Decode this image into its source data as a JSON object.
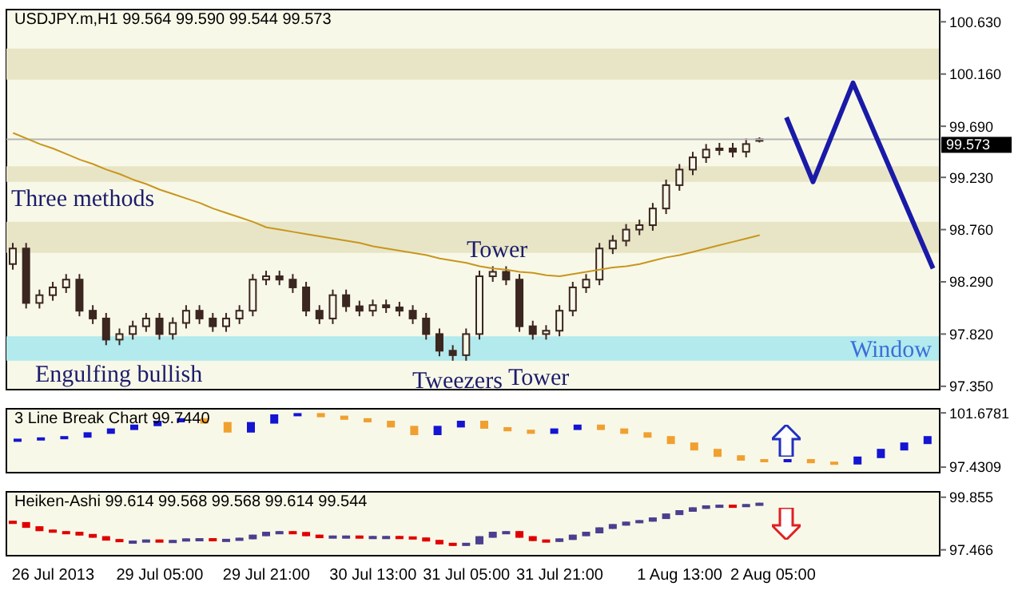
{
  "chart_data": [
    {
      "type": "candlestick",
      "title": "USDJPY.m,H1 99.564 99.590 99.544 99.573",
      "color": "#3b2620",
      "tick_labels": "y",
      "categories": [
        null,
        null,
        null,
        null,
        null,
        null,
        null,
        null,
        null,
        null,
        null,
        null,
        null,
        null,
        null,
        null,
        null,
        null,
        null,
        null,
        null,
        null,
        null,
        null,
        null,
        null,
        null,
        null,
        null,
        null,
        null,
        null,
        null,
        null,
        null,
        null,
        null,
        null,
        null,
        null,
        null,
        null,
        null,
        null,
        null,
        null,
        null,
        null,
        null,
        null,
        null,
        null,
        null,
        null,
        null,
        null,
        null,
        null,
        null,
        null,
        null,
        null,
        null,
        null,
        null,
        null,
        null,
        null,
        null,
        null
      ],
      "ohlc": [
        [
          98.45,
          98.64,
          98.4,
          98.59
        ],
        [
          98.59,
          98.64,
          98.05,
          98.1
        ],
        [
          98.1,
          98.22,
          98.05,
          98.17
        ],
        [
          98.17,
          98.29,
          98.12,
          98.24
        ],
        [
          98.24,
          98.36,
          98.19,
          98.31
        ],
        [
          98.31,
          98.36,
          97.98,
          98.03
        ],
        [
          98.03,
          98.08,
          97.91,
          97.96
        ],
        [
          97.96,
          98.01,
          97.72,
          97.77
        ],
        [
          97.77,
          97.87,
          97.72,
          97.82
        ],
        [
          97.82,
          97.94,
          97.77,
          97.89
        ],
        [
          97.89,
          98.01,
          97.84,
          97.96
        ],
        [
          97.96,
          98.01,
          97.77,
          97.82
        ],
        [
          97.82,
          97.97,
          97.77,
          97.92
        ],
        [
          97.92,
          98.08,
          97.87,
          98.03
        ],
        [
          98.03,
          98.08,
          97.91,
          97.96
        ],
        [
          97.96,
          98.01,
          97.84,
          97.89
        ],
        [
          97.89,
          98.01,
          97.84,
          97.96
        ],
        [
          97.96,
          98.08,
          97.91,
          98.03
        ],
        [
          98.03,
          98.36,
          97.98,
          98.31
        ],
        [
          98.31,
          98.39,
          98.26,
          98.34
        ],
        [
          98.34,
          98.39,
          98.26,
          98.31
        ],
        [
          98.31,
          98.36,
          98.19,
          98.24
        ],
        [
          98.24,
          98.29,
          97.98,
          98.03
        ],
        [
          98.03,
          98.08,
          97.91,
          97.96
        ],
        [
          97.96,
          98.22,
          97.91,
          98.17
        ],
        [
          98.17,
          98.22,
          98.02,
          98.07
        ],
        [
          98.07,
          98.12,
          97.98,
          98.03
        ],
        [
          98.03,
          98.13,
          97.98,
          98.08
        ],
        [
          98.08,
          98.13,
          98.01,
          98.06
        ],
        [
          98.06,
          98.11,
          97.98,
          98.03
        ],
        [
          98.03,
          98.08,
          97.91,
          97.96
        ],
        [
          97.96,
          98.01,
          97.77,
          97.82
        ],
        [
          97.82,
          97.87,
          97.62,
          97.67
        ],
        [
          97.67,
          97.72,
          97.58,
          97.63
        ],
        [
          97.63,
          97.87,
          97.58,
          97.82
        ],
        [
          97.82,
          98.39,
          97.77,
          98.34
        ],
        [
          98.34,
          98.43,
          98.29,
          98.38
        ],
        [
          98.38,
          98.43,
          98.26,
          98.31
        ],
        [
          98.31,
          98.36,
          97.84,
          97.89
        ],
        [
          97.89,
          97.94,
          97.77,
          97.82
        ],
        [
          97.82,
          97.9,
          97.77,
          97.85
        ],
        [
          97.85,
          98.08,
          97.8,
          98.03
        ],
        [
          98.03,
          98.29,
          97.98,
          98.24
        ],
        [
          98.24,
          98.36,
          98.19,
          98.31
        ],
        [
          98.31,
          98.64,
          98.26,
          98.59
        ],
        [
          98.59,
          98.71,
          98.54,
          98.66
        ],
        [
          98.66,
          98.81,
          98.61,
          98.76
        ],
        [
          98.76,
          98.85,
          98.71,
          98.8
        ],
        [
          98.8,
          99.0,
          98.75,
          98.95
        ],
        [
          98.95,
          99.21,
          98.9,
          99.16
        ],
        [
          99.16,
          99.35,
          99.11,
          99.3
        ],
        [
          99.3,
          99.46,
          99.25,
          99.41
        ],
        [
          99.41,
          99.53,
          99.36,
          99.48
        ],
        [
          99.48,
          99.54,
          99.43,
          99.49
        ],
        [
          99.49,
          99.54,
          99.41,
          99.46
        ],
        [
          99.46,
          99.58,
          99.41,
          99.53
        ],
        [
          99.564,
          99.59,
          99.544,
          99.573
        ],
        null,
        null,
        null,
        null,
        null,
        null,
        null,
        null,
        null,
        null,
        null,
        null,
        null
      ],
      "series": [
        {
          "type": "line",
          "color": "#c8961e",
          "values": [
            99.63,
            99.58,
            99.53,
            99.49,
            99.44,
            99.39,
            99.35,
            99.3,
            99.26,
            99.21,
            99.17,
            99.12,
            99.08,
            99.04,
            99.0,
            98.95,
            98.91,
            98.87,
            98.83,
            98.78,
            98.76,
            98.74,
            98.72,
            98.7,
            98.68,
            98.66,
            98.64,
            98.61,
            98.59,
            98.57,
            98.55,
            98.53,
            98.5,
            98.48,
            98.46,
            98.43,
            98.41,
            98.4,
            98.38,
            98.37,
            98.35,
            98.34,
            98.36,
            98.38,
            98.4,
            98.42,
            98.43,
            98.45,
            98.48,
            98.51,
            98.53,
            98.56,
            98.59,
            98.62,
            98.65,
            98.68,
            98.71,
            null,
            null,
            null,
            null,
            null,
            null,
            null,
            null,
            null,
            null,
            null,
            null,
            null
          ]
        },
        {
          "type": "line",
          "color": "#1a1aa8",
          "values": [
            null,
            null,
            null,
            null,
            null,
            null,
            null,
            null,
            null,
            null,
            null,
            null,
            null,
            null,
            null,
            null,
            null,
            null,
            null,
            null,
            null,
            null,
            null,
            null,
            null,
            null,
            null,
            null,
            null,
            null,
            null,
            null,
            null,
            null,
            null,
            null,
            null,
            null,
            null,
            null,
            null,
            null,
            null,
            null,
            null,
            null,
            null,
            null,
            null,
            null,
            null,
            null,
            null,
            null,
            null,
            null,
            null,
            null,
            99.77,
            null,
            99.19,
            null,
            null,
            100.08,
            null,
            null,
            null,
            null,
            null,
            98.41
          ]
        }
      ],
      "ylim": [
        97.32,
        100.74
      ],
      "yticks": [
        {
          "value": 97.35,
          "label": "97.350"
        },
        {
          "value": 97.82,
          "label": "97.820"
        },
        {
          "value": 98.29,
          "label": "98.290"
        },
        {
          "value": 98.76,
          "label": "98.760"
        },
        {
          "value": 99.23,
          "label": "99.230"
        },
        {
          "value": 99.69,
          "label": "99.690"
        },
        {
          "value": 100.16,
          "label": "100.160"
        },
        {
          "value": 100.63,
          "label": "100.630"
        }
      ],
      "bands": [
        {
          "axis": "y",
          "from": 100.11,
          "to": 100.39,
          "color": "#e8e5c6"
        },
        {
          "axis": "y",
          "from": 99.19,
          "to": 99.33,
          "color": "#e8e5c6"
        },
        {
          "axis": "y",
          "from": 98.55,
          "to": 98.83,
          "color": "#e8e5c6"
        },
        {
          "axis": "y",
          "from": 97.58,
          "to": 97.8,
          "label": "Window",
          "color": "#b2eaee"
        }
      ],
      "ref_lines": [
        {
          "axis": "y",
          "value": 99.573,
          "label": "99.573",
          "color": "#b4b4b4"
        }
      ],
      "annotations": [
        "Three methods",
        "Engulfing bullish",
        "Tower",
        "Tweezers",
        "Tower"
      ]
    },
    {
      "type": "candlestick",
      "title": "3 Line Break Chart 99.7440",
      "tick_labels": "y",
      "categories": [
        null,
        null,
        null,
        null,
        null,
        null,
        null,
        null,
        null,
        null,
        null,
        null,
        null,
        null,
        null,
        null,
        null,
        null,
        null,
        null,
        null,
        null,
        null,
        null,
        null,
        null,
        null,
        null,
        null,
        null,
        null,
        null,
        null,
        null,
        null,
        null,
        null,
        null,
        null,
        null
      ],
      "ohlc": [
        [
          99.5,
          99.6,
          99.5,
          99.6
        ],
        [
          99.6,
          99.7,
          99.6,
          99.7
        ],
        [
          99.7,
          99.8,
          99.7,
          99.8
        ],
        [
          99.8,
          100.1,
          99.8,
          100.1
        ],
        [
          100.1,
          100.4,
          100.1,
          100.4
        ],
        [
          100.4,
          100.7,
          100.4,
          100.7
        ],
        [
          100.7,
          101.0,
          100.7,
          101.0
        ],
        [
          101.0,
          101.2,
          101.0,
          101.2
        ],
        [
          101.2,
          101.2,
          100.9,
          100.9
        ],
        [
          100.9,
          100.9,
          100.2,
          100.2
        ],
        [
          100.2,
          100.9,
          100.2,
          100.9
        ],
        [
          100.9,
          101.5,
          100.9,
          101.5
        ],
        [
          101.5,
          101.6,
          101.5,
          101.6
        ],
        [
          101.6,
          101.6,
          101.4,
          101.4
        ],
        [
          101.4,
          101.4,
          101.2,
          101.2
        ],
        [
          101.2,
          101.2,
          101.0,
          101.0
        ],
        [
          101.0,
          101.0,
          100.6,
          100.6
        ],
        [
          100.6,
          100.6,
          100.0,
          100.0
        ],
        [
          100.0,
          100.6,
          100.0,
          100.6
        ],
        [
          100.6,
          101.0,
          100.6,
          101.0
        ],
        [
          101.0,
          101.0,
          100.5,
          100.5
        ],
        [
          100.5,
          100.5,
          100.3,
          100.3
        ],
        [
          100.3,
          100.3,
          100.1,
          100.1
        ],
        [
          100.1,
          100.4,
          100.1,
          100.4
        ],
        [
          100.4,
          100.7,
          100.4,
          100.7
        ],
        [
          100.7,
          100.7,
          100.4,
          100.4
        ],
        [
          100.4,
          100.4,
          100.1,
          100.1
        ],
        [
          100.1,
          100.1,
          99.8,
          99.8
        ],
        [
          99.8,
          99.8,
          99.3,
          99.3
        ],
        [
          99.3,
          99.3,
          98.8,
          98.8
        ],
        [
          98.8,
          98.8,
          98.3,
          98.3
        ],
        [
          98.3,
          98.3,
          98.0,
          98.0
        ],
        [
          98.0,
          98.0,
          97.9,
          97.9
        ],
        [
          97.9,
          98.0,
          97.9,
          98.0
        ],
        [
          98.0,
          98.0,
          97.8,
          97.8
        ],
        [
          97.8,
          97.8,
          97.7,
          97.7
        ],
        [
          97.7,
          98.2,
          97.7,
          98.2
        ],
        [
          98.2,
          98.8,
          98.2,
          98.8
        ],
        [
          98.8,
          99.3,
          98.8,
          99.3
        ],
        [
          99.3,
          99.8,
          99.3,
          99.8
        ]
      ],
      "colors": [
        "#1414d2",
        "#1414d2",
        "#1414d2",
        "#1414d2",
        "#1414d2",
        "#1414d2",
        "#1414d2",
        "#1414d2",
        "#f0a030",
        "#f0a030",
        "#1414d2",
        "#1414d2",
        "#1414d2",
        "#f0a030",
        "#f0a030",
        "#f0a030",
        "#f0a030",
        "#f0a030",
        "#1414d2",
        "#1414d2",
        "#f0a030",
        "#f0a030",
        "#f0a030",
        "#1414d2",
        "#1414d2",
        "#f0a030",
        "#f0a030",
        "#f0a030",
        "#f0a030",
        "#f0a030",
        "#f0a030",
        "#f0a030",
        "#f0a030",
        "#1414d2",
        "#f0a030",
        "#f0a030",
        "#1414d2",
        "#1414d2",
        "#1414d2",
        "#1414d2"
      ],
      "ylim": [
        97.0,
        102.0
      ],
      "yticks": [
        {
          "value": 101.6781,
          "label": "101.6781"
        },
        {
          "value": 97.4309,
          "label": "97.4309"
        }
      ]
    },
    {
      "type": "candlestick",
      "title": "Heiken-Ashi 99.614 99.568 99.568 99.614 99.544",
      "categories": [
        null,
        null,
        null,
        "26 Jul 2013",
        null,
        null,
        null,
        null,
        null,
        null,
        null,
        "29 Jul 05:00",
        null,
        null,
        null,
        null,
        null,
        null,
        null,
        "29 Jul 21:00",
        null,
        null,
        null,
        null,
        null,
        null,
        null,
        "30 Jul 13:00",
        null,
        null,
        null,
        null,
        null,
        null,
        "31 Jul 05:00",
        null,
        null,
        null,
        null,
        null,
        null,
        "31 Jul 21:00",
        null,
        null,
        null,
        null,
        null,
        null,
        null,
        null,
        "1 Aug 13:00",
        null,
        null,
        null,
        null,
        null,
        null,
        "2 Aug 05:00",
        null,
        null,
        null,
        null,
        null,
        null,
        null,
        null,
        null,
        null,
        null,
        null
      ],
      "ohlc": [
        [
          98.75,
          98.78,
          98.66,
          98.69
        ],
        [
          98.69,
          98.72,
          98.47,
          98.5
        ],
        [
          98.5,
          98.53,
          98.32,
          98.35
        ],
        [
          98.35,
          98.38,
          98.25,
          98.28
        ],
        [
          98.28,
          98.31,
          98.22,
          98.25
        ],
        [
          98.25,
          98.28,
          98.12,
          98.15
        ],
        [
          98.15,
          98.18,
          98.02,
          98.05
        ],
        [
          98.05,
          98.08,
          97.89,
          97.92
        ],
        [
          97.92,
          97.95,
          97.82,
          97.85
        ],
        [
          97.85,
          97.88,
          97.82,
          97.85
        ],
        [
          97.85,
          97.93,
          97.82,
          97.9
        ],
        [
          97.9,
          97.93,
          97.83,
          97.86
        ],
        [
          97.86,
          97.91,
          97.83,
          97.88
        ],
        [
          97.88,
          97.98,
          97.85,
          97.95
        ],
        [
          97.95,
          97.99,
          97.92,
          97.96
        ],
        [
          97.96,
          97.99,
          97.89,
          97.92
        ],
        [
          97.92,
          97.96,
          97.89,
          97.93
        ],
        [
          97.93,
          98.01,
          97.9,
          97.98
        ],
        [
          97.98,
          98.15,
          97.95,
          98.12
        ],
        [
          98.12,
          98.28,
          98.09,
          98.25
        ],
        [
          98.25,
          98.31,
          98.22,
          98.28
        ],
        [
          98.28,
          98.31,
          98.21,
          98.24
        ],
        [
          98.24,
          98.27,
          98.09,
          98.12
        ],
        [
          98.12,
          98.15,
          98.0,
          98.03
        ],
        [
          98.03,
          98.11,
          98.0,
          98.08
        ],
        [
          98.08,
          98.11,
          98.05,
          98.08
        ],
        [
          98.08,
          98.11,
          98.02,
          98.05
        ],
        [
          98.05,
          98.09,
          98.02,
          98.06
        ],
        [
          98.06,
          98.09,
          98.03,
          98.06
        ],
        [
          98.06,
          98.09,
          98.01,
          98.04
        ],
        [
          98.04,
          98.07,
          97.96,
          97.99
        ],
        [
          97.99,
          98.02,
          97.85,
          97.88
        ],
        [
          97.88,
          97.91,
          97.72,
          97.75
        ],
        [
          97.75,
          97.78,
          97.65,
          97.68
        ],
        [
          97.68,
          97.78,
          97.65,
          97.75
        ],
        [
          97.75,
          98.08,
          97.72,
          98.05
        ],
        [
          98.05,
          98.28,
          98.02,
          98.25
        ],
        [
          98.25,
          98.31,
          98.22,
          98.28
        ],
        [
          98.28,
          98.31,
          98.02,
          98.05
        ],
        [
          98.05,
          98.08,
          97.87,
          97.9
        ],
        [
          97.9,
          97.93,
          97.83,
          97.86
        ],
        [
          97.86,
          97.98,
          97.83,
          97.95
        ],
        [
          97.95,
          98.15,
          97.92,
          98.12
        ],
        [
          98.12,
          98.28,
          98.09,
          98.25
        ],
        [
          98.25,
          98.48,
          98.22,
          98.45
        ],
        [
          98.45,
          98.63,
          98.42,
          98.6
        ],
        [
          98.6,
          98.74,
          98.57,
          98.71
        ],
        [
          98.71,
          98.81,
          98.68,
          98.78
        ],
        [
          98.78,
          98.93,
          98.75,
          98.9
        ],
        [
          98.9,
          99.11,
          98.87,
          99.08
        ],
        [
          99.08,
          99.26,
          99.05,
          99.23
        ],
        [
          99.23,
          99.39,
          99.2,
          99.36
        ],
        [
          99.36,
          99.48,
          99.33,
          99.45
        ],
        [
          99.45,
          99.51,
          99.42,
          99.48
        ],
        [
          99.48,
          99.51,
          99.44,
          99.47
        ],
        [
          99.47,
          99.54,
          99.44,
          99.51
        ],
        [
          99.51,
          99.6,
          99.48,
          99.57
        ],
        null,
        null,
        null,
        null,
        null,
        null,
        null,
        null,
        null,
        null,
        null,
        null,
        null
      ],
      "colors": [
        "#e00000",
        "#e00000",
        "#e00000",
        "#e00000",
        "#e00000",
        "#e00000",
        "#e00000",
        "#e00000",
        "#e00000",
        "#4b3f8f",
        "#4b3f8f",
        "#e00000",
        "#4b3f8f",
        "#4b3f8f",
        "#4b3f8f",
        "#e00000",
        "#4b3f8f",
        "#4b3f8f",
        "#4b3f8f",
        "#4b3f8f",
        "#4b3f8f",
        "#e00000",
        "#e00000",
        "#e00000",
        "#4b3f8f",
        "#4b3f8f",
        "#e00000",
        "#4b3f8f",
        "#4b3f8f",
        "#e00000",
        "#e00000",
        "#e00000",
        "#e00000",
        "#e00000",
        "#4b3f8f",
        "#4b3f8f",
        "#4b3f8f",
        "#4b3f8f",
        "#e00000",
        "#e00000",
        "#e00000",
        "#4b3f8f",
        "#4b3f8f",
        "#4b3f8f",
        "#4b3f8f",
        "#4b3f8f",
        "#4b3f8f",
        "#4b3f8f",
        "#4b3f8f",
        "#4b3f8f",
        "#4b3f8f",
        "#4b3f8f",
        "#4b3f8f",
        "#4b3f8f",
        "#e00000",
        "#4b3f8f",
        "#4b3f8f",
        null,
        null,
        null,
        null,
        null,
        null,
        null,
        null,
        null,
        null,
        null,
        null,
        null
      ],
      "ylim": [
        97.2,
        100.1
      ],
      "yticks": [
        {
          "value": 99.855,
          "label": "99.855"
        },
        {
          "value": 97.466,
          "label": "97.466"
        }
      ]
    }
  ]
}
